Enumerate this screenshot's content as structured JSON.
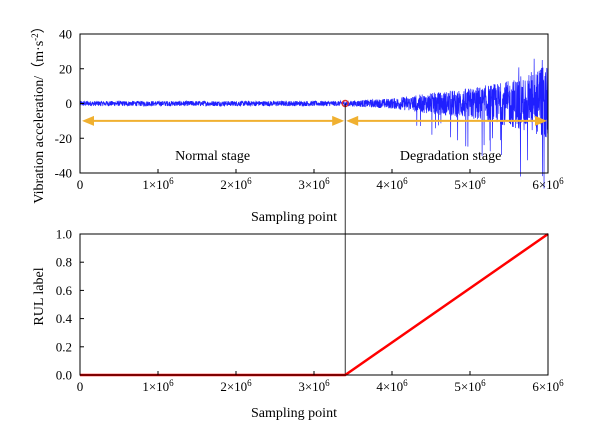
{
  "colors": {
    "signal": "#1f1fff",
    "rul": "#ff0000",
    "arrow": "#f0b030",
    "marker": "#e03030",
    "axis": "#000000",
    "divider": "#000000"
  },
  "chart_data": [
    {
      "type": "line",
      "name": "vibration",
      "title": "",
      "xlabel": "Sampling point",
      "ylabel": "Vibration acceleration/（m·s-2）",
      "ylabel_parts": {
        "main": "Vibration acceleration/（m·s",
        "sup": "-2",
        "close": "）"
      },
      "xlim": [
        0,
        6000000
      ],
      "ylim": [
        -40,
        40
      ],
      "yticks": [
        -40,
        -20,
        0,
        20,
        40
      ],
      "xticks": [
        0,
        1000000,
        2000000,
        3000000,
        4000000,
        5000000,
        6000000
      ],
      "xtick_labels": [
        {
          "value": 0,
          "base": "0",
          "exp": ""
        },
        {
          "value": 1000000,
          "base": "1×10",
          "exp": "6"
        },
        {
          "value": 2000000,
          "base": "2×10",
          "exp": "6"
        },
        {
          "value": 3000000,
          "base": "3×10",
          "exp": "6"
        },
        {
          "value": 4000000,
          "base": "4×10",
          "exp": "6"
        },
        {
          "value": 5000000,
          "base": "5×10",
          "exp": "6"
        },
        {
          "value": 6000000,
          "base": "6×10",
          "exp": "6"
        }
      ],
      "stage_split": 3400000,
      "normal_amplitude": 1.5,
      "degradation_envelope": [
        {
          "x": 3400000,
          "amp": 1.5
        },
        {
          "x": 4000000,
          "amp": 3
        },
        {
          "x": 4500000,
          "amp": 6
        },
        {
          "x": 5000000,
          "amp": 9
        },
        {
          "x": 5500000,
          "amp": 13
        },
        {
          "x": 6000000,
          "amp": 22
        }
      ],
      "arrow_y": -10,
      "annotations": {
        "normal_stage": "Normal stage",
        "degradation_stage": "Degradation stage"
      }
    },
    {
      "type": "line",
      "name": "rul",
      "title": "",
      "xlabel": "Sampling point",
      "ylabel": "RUL label",
      "xlim": [
        0,
        6000000
      ],
      "ylim": [
        0,
        1.0
      ],
      "yticks": [
        0.0,
        0.2,
        0.4,
        0.6,
        0.8,
        1.0
      ],
      "ytick_labels": [
        "0.0",
        "0.2",
        "0.4",
        "0.6",
        "0.8",
        "1.0"
      ],
      "xtick_labels": [
        {
          "value": 0,
          "base": "0",
          "exp": ""
        },
        {
          "value": 1000000,
          "base": "1×10",
          "exp": "6"
        },
        {
          "value": 2000000,
          "base": "2×10",
          "exp": "6"
        },
        {
          "value": 3000000,
          "base": "3×10",
          "exp": "6"
        },
        {
          "value": 4000000,
          "base": "4×10",
          "exp": "6"
        },
        {
          "value": 5000000,
          "base": "5×10",
          "exp": "6"
        },
        {
          "value": 6000000,
          "base": "6×10",
          "exp": "6"
        }
      ],
      "series": [
        {
          "name": "RUL label",
          "x": [
            0,
            3400000,
            6000000
          ],
          "y": [
            0.0,
            0.0,
            1.0
          ]
        }
      ]
    }
  ]
}
